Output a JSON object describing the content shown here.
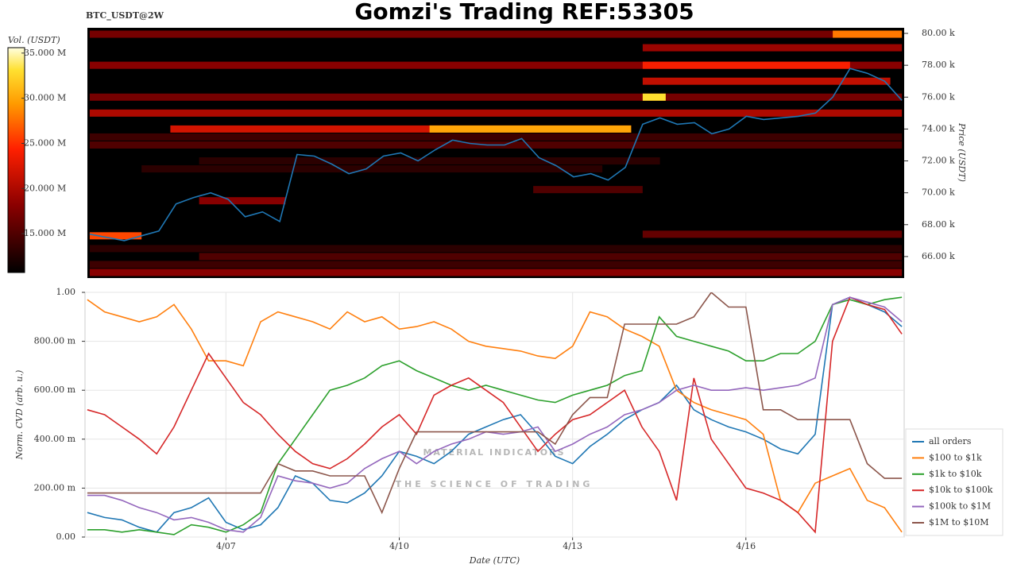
{
  "chart_data": [
    {
      "type": "heatmap",
      "title": "Gomzi's Trading REF:53305",
      "subtitle": "BTC_USDT@2W",
      "y_label": "Price (USDT)",
      "colorbar_label": "Vol. (USDT)",
      "xlim": [
        4.56,
        18.74
      ],
      "ylim": [
        64.65,
        80.35
      ],
      "yticks": [
        {
          "value": 66,
          "label": "66.00 k"
        },
        {
          "value": 68,
          "label": "68.00 k"
        },
        {
          "value": 70,
          "label": "70.00 k"
        },
        {
          "value": 72,
          "label": "72.00 k"
        },
        {
          "value": 74,
          "label": "74.00 k"
        },
        {
          "value": 76,
          "label": "76.00 k"
        },
        {
          "value": 78,
          "label": "78.00 k"
        },
        {
          "value": 80,
          "label": "80.00 k"
        }
      ],
      "clim": [
        10.7,
        35.6
      ],
      "cticks": [
        {
          "value": 15,
          "label": "15.000 M"
        },
        {
          "value": 20,
          "label": "20.000 M"
        },
        {
          "value": 25,
          "label": "25.000 M"
        },
        {
          "value": 30,
          "label": "30.000 M"
        },
        {
          "value": 35,
          "label": "35.000 M"
        }
      ],
      "cells": [
        {
          "price": 79.95,
          "x0": 4.6,
          "x1": 18.7,
          "volume": 17
        },
        {
          "price": 79.95,
          "x0": 17.5,
          "x1": 18.7,
          "volume": 28
        },
        {
          "price": 79.1,
          "x0": 14.2,
          "x1": 18.7,
          "volume": 19
        },
        {
          "price": 78.0,
          "x0": 4.6,
          "x1": 18.7,
          "volume": 18
        },
        {
          "price": 78.0,
          "x0": 14.2,
          "x1": 17.8,
          "volume": 24
        },
        {
          "price": 77.0,
          "x0": 14.2,
          "x1": 18.5,
          "volume": 21
        },
        {
          "price": 76.0,
          "x0": 4.6,
          "x1": 18.7,
          "volume": 17
        },
        {
          "price": 76.0,
          "x0": 14.2,
          "x1": 14.6,
          "volume": 33
        },
        {
          "price": 75.0,
          "x0": 4.6,
          "x1": 18.7,
          "volume": 20
        },
        {
          "price": 74.0,
          "x0": 6.0,
          "x1": 14.0,
          "volume": 22
        },
        {
          "price": 74.0,
          "x0": 10.5,
          "x1": 14.0,
          "volume": 30
        },
        {
          "price": 73.5,
          "x0": 4.6,
          "x1": 18.7,
          "volume": 14
        },
        {
          "price": 73.0,
          "x0": 4.6,
          "x1": 18.7,
          "volume": 15
        },
        {
          "price": 72.0,
          "x0": 6.5,
          "x1": 14.5,
          "volume": 13
        },
        {
          "price": 71.5,
          "x0": 5.5,
          "x1": 13.5,
          "volume": 13
        },
        {
          "price": 70.2,
          "x0": 12.3,
          "x1": 14.2,
          "volume": 15
        },
        {
          "price": 69.5,
          "x0": 6.5,
          "x1": 8.0,
          "volume": 18
        },
        {
          "price": 67.3,
          "x0": 4.6,
          "x1": 5.5,
          "volume": 26
        },
        {
          "price": 67.4,
          "x0": 14.2,
          "x1": 18.7,
          "volume": 16
        },
        {
          "price": 66.5,
          "x0": 4.6,
          "x1": 18.7,
          "volume": 13
        },
        {
          "price": 66.0,
          "x0": 6.5,
          "x1": 18.7,
          "volume": 15
        },
        {
          "price": 65.5,
          "x0": 4.6,
          "x1": 18.7,
          "volume": 14
        },
        {
          "price": 65.0,
          "x0": 4.6,
          "x1": 18.7,
          "volume": 18
        }
      ],
      "x": [
        4.6,
        4.9,
        5.2,
        5.5,
        5.8,
        6.1,
        6.4,
        6.7,
        7.0,
        7.3,
        7.6,
        7.9,
        8.2,
        8.5,
        8.8,
        9.1,
        9.4,
        9.7,
        10.0,
        10.3,
        10.6,
        10.9,
        11.2,
        11.5,
        11.8,
        12.1,
        12.4,
        12.7,
        13.0,
        13.3,
        13.6,
        13.9,
        14.2,
        14.5,
        14.8,
        15.1,
        15.4,
        15.7,
        16.0,
        16.3,
        16.6,
        16.9,
        17.2,
        17.5,
        17.8,
        18.1,
        18.4,
        18.7
      ],
      "price_line": {
        "color": "#1f77b4",
        "values": [
          67.4,
          67.2,
          67.0,
          67.3,
          67.6,
          69.3,
          69.7,
          70.0,
          69.6,
          68.5,
          68.8,
          68.2,
          72.4,
          72.3,
          71.8,
          71.2,
          71.5,
          72.3,
          72.5,
          72.0,
          72.7,
          73.3,
          73.1,
          73.0,
          73.0,
          73.4,
          72.2,
          71.7,
          71.0,
          71.2,
          70.8,
          71.6,
          74.3,
          74.7,
          74.3,
          74.4,
          73.7,
          74.0,
          74.8,
          74.6,
          74.7,
          74.8,
          75.0,
          76.0,
          77.8,
          77.5,
          77.0,
          75.8
        ]
      }
    },
    {
      "type": "line",
      "x_label": "Date (UTC)",
      "y_label": "Norm. CVD (arb. u.)",
      "watermark": [
        "MATERIAL INDICATORS",
        "THE SCIENCE OF TRADING"
      ],
      "grid": true,
      "legend": "right",
      "xlim": [
        4.56,
        18.74
      ],
      "xticks": [
        {
          "value": 7,
          "label": "4/07"
        },
        {
          "value": 10,
          "label": "4/10"
        },
        {
          "value": 13,
          "label": "4/13"
        },
        {
          "value": 16,
          "label": "4/16"
        }
      ],
      "ylim": [
        0,
        1
      ],
      "yticks": [
        {
          "value": 0,
          "label": "0.00"
        },
        {
          "value": 0.2,
          "label": "200.00 m"
        },
        {
          "value": 0.4,
          "label": "400.00 m"
        },
        {
          "value": 0.6,
          "label": "600.00 m"
        },
        {
          "value": 0.8,
          "label": "800.00 m"
        },
        {
          "value": 1,
          "label": "1.00"
        }
      ],
      "x": [
        4.6,
        4.9,
        5.2,
        5.5,
        5.8,
        6.1,
        6.4,
        6.7,
        7.0,
        7.3,
        7.6,
        7.9,
        8.2,
        8.5,
        8.8,
        9.1,
        9.4,
        9.7,
        10.0,
        10.3,
        10.6,
        10.9,
        11.2,
        11.5,
        11.8,
        12.1,
        12.4,
        12.7,
        13.0,
        13.3,
        13.6,
        13.9,
        14.2,
        14.5,
        14.8,
        15.1,
        15.4,
        15.7,
        16.0,
        16.3,
        16.6,
        16.9,
        17.2,
        17.5,
        17.8,
        18.1,
        18.4,
        18.7
      ],
      "series": [
        {
          "name": "all orders",
          "color": "#1f77b4",
          "values": [
            0.1,
            0.08,
            0.07,
            0.04,
            0.02,
            0.1,
            0.12,
            0.16,
            0.06,
            0.03,
            0.05,
            0.12,
            0.25,
            0.22,
            0.15,
            0.14,
            0.18,
            0.25,
            0.35,
            0.33,
            0.3,
            0.35,
            0.42,
            0.45,
            0.48,
            0.5,
            0.42,
            0.33,
            0.3,
            0.37,
            0.42,
            0.48,
            0.52,
            0.55,
            0.62,
            0.52,
            0.48,
            0.45,
            0.43,
            0.4,
            0.36,
            0.34,
            0.42,
            0.95,
            0.98,
            0.95,
            0.92,
            0.86
          ]
        },
        {
          "name": "$100 to $1k",
          "color": "#ff7f0e",
          "values": [
            0.97,
            0.92,
            0.9,
            0.88,
            0.9,
            0.95,
            0.85,
            0.72,
            0.72,
            0.7,
            0.88,
            0.92,
            0.9,
            0.88,
            0.85,
            0.92,
            0.88,
            0.9,
            0.85,
            0.86,
            0.88,
            0.85,
            0.8,
            0.78,
            0.77,
            0.76,
            0.74,
            0.73,
            0.78,
            0.92,
            0.9,
            0.85,
            0.82,
            0.78,
            0.6,
            0.55,
            0.52,
            0.5,
            0.48,
            0.42,
            0.15,
            0.1,
            0.22,
            0.25,
            0.28,
            0.15,
            0.12,
            0.02
          ]
        },
        {
          "name": "$1k to $10k",
          "color": "#2ca02c",
          "values": [
            0.03,
            0.03,
            0.02,
            0.03,
            0.02,
            0.01,
            0.05,
            0.04,
            0.02,
            0.05,
            0.1,
            0.3,
            0.4,
            0.5,
            0.6,
            0.62,
            0.65,
            0.7,
            0.72,
            0.68,
            0.65,
            0.62,
            0.6,
            0.62,
            0.6,
            0.58,
            0.56,
            0.55,
            0.58,
            0.6,
            0.62,
            0.66,
            0.68,
            0.9,
            0.82,
            0.8,
            0.78,
            0.76,
            0.72,
            0.72,
            0.75,
            0.75,
            0.8,
            0.95,
            0.97,
            0.95,
            0.97,
            0.98
          ]
        },
        {
          "name": "$10k to $100k",
          "color": "#d62728",
          "values": [
            0.52,
            0.5,
            0.45,
            0.4,
            0.34,
            0.45,
            0.6,
            0.75,
            0.65,
            0.55,
            0.5,
            0.42,
            0.35,
            0.3,
            0.28,
            0.32,
            0.38,
            0.45,
            0.5,
            0.42,
            0.58,
            0.62,
            0.65,
            0.6,
            0.55,
            0.45,
            0.35,
            0.42,
            0.48,
            0.5,
            0.55,
            0.6,
            0.45,
            0.35,
            0.15,
            0.65,
            0.4,
            0.3,
            0.2,
            0.18,
            0.15,
            0.1,
            0.02,
            0.8,
            0.98,
            0.95,
            0.93,
            0.83
          ]
        },
        {
          "name": "$100k to $1M",
          "color": "#9467bd",
          "values": [
            0.17,
            0.17,
            0.15,
            0.12,
            0.1,
            0.07,
            0.08,
            0.06,
            0.03,
            0.02,
            0.08,
            0.25,
            0.23,
            0.22,
            0.2,
            0.22,
            0.28,
            0.32,
            0.35,
            0.3,
            0.35,
            0.38,
            0.4,
            0.43,
            0.42,
            0.43,
            0.45,
            0.35,
            0.38,
            0.42,
            0.45,
            0.5,
            0.52,
            0.55,
            0.6,
            0.62,
            0.6,
            0.6,
            0.61,
            0.6,
            0.61,
            0.62,
            0.65,
            0.95,
            0.98,
            0.96,
            0.94,
            0.88
          ]
        },
        {
          "name": "$1M to $10M",
          "color": "#8c564b",
          "values": [
            0.18,
            0.18,
            0.18,
            0.18,
            0.18,
            0.18,
            0.18,
            0.18,
            0.18,
            0.18,
            0.18,
            0.3,
            0.27,
            0.27,
            0.25,
            0.25,
            0.25,
            0.1,
            0.28,
            0.43,
            0.43,
            0.43,
            0.43,
            0.43,
            0.43,
            0.43,
            0.43,
            0.38,
            0.5,
            0.57,
            0.57,
            0.87,
            0.87,
            0.87,
            0.87,
            0.9,
            1.0,
            0.94,
            0.94,
            0.52,
            0.52,
            0.48,
            0.48,
            0.48,
            0.48,
            0.3,
            0.24,
            0.24
          ]
        }
      ]
    }
  ]
}
